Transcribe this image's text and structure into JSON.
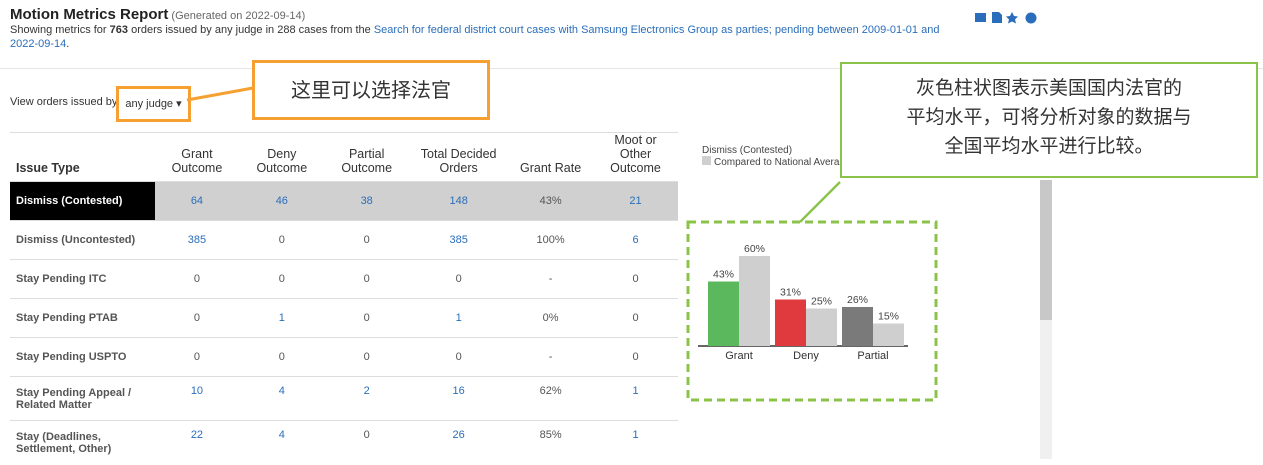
{
  "header": {
    "title": "Motion Metrics Report",
    "generated": "(Generated on 2022-09-14)",
    "desc_prefix": "Showing metrics for",
    "count": "763",
    "desc_mid": "orders issued by any judge in 288 cases from the",
    "link": "Search for federal district court cases with Samsung Electronics Group as parties; pending between 2009-01-01 and 2022-09-14",
    "desc_end": "."
  },
  "filter": {
    "label": "View orders issued by",
    "dropdown": "any judge"
  },
  "table": {
    "headers": [
      "Issue Type",
      "Grant Outcome",
      "Deny Outcome",
      "Partial Outcome",
      "Total Decided Orders",
      "Grant Rate",
      "Moot or Other Outcome"
    ],
    "rows": [
      [
        "Dismiss (Contested)",
        "64",
        "46",
        "38",
        "148",
        "43%",
        "21"
      ],
      [
        "Dismiss (Uncontested)",
        "385",
        "0",
        "0",
        "385",
        "100%",
        "6"
      ],
      [
        "Stay Pending ITC",
        "0",
        "0",
        "0",
        "0",
        "-",
        "0"
      ],
      [
        "Stay Pending PTAB",
        "0",
        "1",
        "0",
        "1",
        "0%",
        "0"
      ],
      [
        "Stay Pending USPTO",
        "0",
        "0",
        "0",
        "0",
        "-",
        "0"
      ],
      [
        "Stay Pending Appeal / Related Matter",
        "10",
        "4",
        "2",
        "16",
        "62%",
        "1"
      ],
      [
        "Stay (Deadlines, Settlement, Other)",
        "22",
        "4",
        "0",
        "26",
        "85%",
        "1"
      ]
    ]
  },
  "chart": {
    "type": "bar",
    "title": "Dismiss (Contested)",
    "categories": [
      "Grant",
      "Deny",
      "Partial"
    ],
    "series": [
      {
        "name": "Dismiss (Contested)",
        "colors": [
          "#5cb85c",
          "#e0393e",
          "#7a7a7a"
        ],
        "values": [
          43,
          31,
          26
        ],
        "value_labels": [
          "43%",
          "31%",
          "26%"
        ]
      },
      {
        "name": "Compared to National Average",
        "color": "#cfcfcf",
        "values": [
          60,
          25,
          15
        ],
        "value_labels": [
          "60%",
          "25%",
          "15%"
        ]
      }
    ]
  },
  "annotations": {
    "judge": "这里可以选择法官",
    "chart": [
      "灰色柱状图表示美国国内法官的",
      "平均水平，可将分析对象的数据与",
      "全国平均水平进行比较。"
    ]
  }
}
